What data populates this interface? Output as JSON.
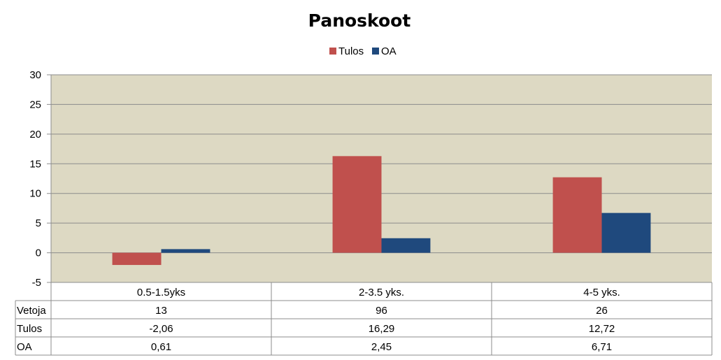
{
  "chart_data": {
    "type": "bar",
    "title": "Panoskoot",
    "categories": [
      "0.5-1.5yks",
      "2-3.5 yks.",
      "4-5 yks."
    ],
    "series": [
      {
        "name": "Tulos",
        "color": "#C0504D",
        "values": [
          -2.06,
          16.29,
          12.72
        ]
      },
      {
        "name": "OA",
        "color": "#1F497D",
        "values": [
          0.61,
          2.45,
          6.71
        ]
      }
    ],
    "ylim": [
      -5,
      30
    ],
    "yticks": [
      30,
      25,
      20,
      15,
      10,
      5,
      0,
      -5
    ],
    "grid": true,
    "legend": "top",
    "plot_background": "#DDD9C3",
    "data_table": {
      "rows": [
        {
          "label": "Vetoja",
          "values": [
            "13",
            "96",
            "26"
          ]
        },
        {
          "label": "Tulos",
          "values": [
            "-2,06",
            "16,29",
            "12,72"
          ]
        },
        {
          "label": "OA",
          "values": [
            "0,61",
            "2,45",
            "6,71"
          ]
        }
      ]
    }
  }
}
